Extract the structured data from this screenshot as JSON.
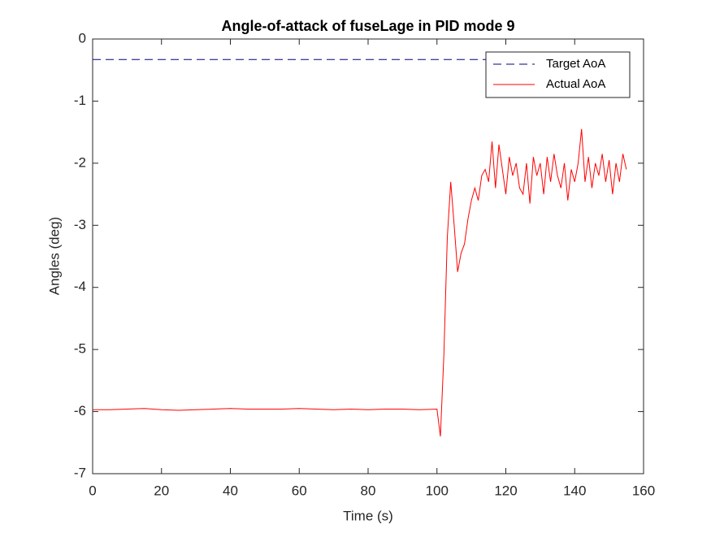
{
  "chart_data": {
    "type": "line",
    "title": "Angle-of-attack of fuseLage in PID mode 9",
    "x_label": "Time (s)",
    "y_label": "Angles (deg)",
    "x": [
      0,
      5,
      10,
      15,
      20,
      25,
      30,
      35,
      40,
      45,
      50,
      55,
      60,
      65,
      70,
      75,
      80,
      85,
      90,
      95,
      100,
      101,
      102,
      103,
      104,
      105,
      106,
      107,
      108,
      109,
      110,
      111,
      112,
      113,
      114,
      115,
      116,
      117,
      118,
      119,
      120,
      121,
      122,
      123,
      124,
      125,
      126,
      127,
      128,
      129,
      130,
      131,
      132,
      133,
      134,
      135,
      136,
      137,
      138,
      139,
      140,
      141,
      142,
      143,
      144,
      145,
      146,
      147,
      148,
      149,
      150,
      151,
      152,
      153,
      154,
      155
    ],
    "series": [
      {
        "name": "Target AoA",
        "color": "#00007f",
        "dash": true,
        "values": [
          -0.33,
          -0.33,
          -0.33,
          -0.33,
          -0.33,
          -0.33,
          -0.33,
          -0.33,
          -0.33,
          -0.33,
          -0.33,
          -0.33,
          -0.33,
          -0.33,
          -0.33,
          -0.33,
          -0.33,
          -0.33,
          -0.33,
          -0.33,
          -0.33,
          -0.33,
          -0.33,
          -0.33,
          -0.33,
          -0.33,
          -0.33,
          -0.33,
          -0.33,
          -0.33,
          -0.33,
          -0.33,
          -0.33,
          -0.33,
          -0.33,
          -0.33,
          -0.33,
          -0.33,
          -0.33,
          -0.33,
          -0.33,
          -0.33,
          -0.33,
          -0.33,
          -0.33,
          -0.33,
          -0.33,
          -0.33,
          -0.33,
          -0.33,
          -0.33,
          -0.33,
          -0.33,
          -0.33,
          -0.33,
          -0.33,
          -0.33,
          -0.33,
          -0.33,
          -0.33,
          -0.33,
          -0.33,
          -0.33,
          -0.33,
          -0.33,
          -0.33,
          -0.33,
          -0.33,
          -0.33,
          -0.33,
          -0.33,
          -0.33,
          -0.33,
          -0.33,
          -0.33,
          -0.33
        ]
      },
      {
        "name": "Actual AoA",
        "color": "#ff0000",
        "dash": false,
        "values": [
          -5.97,
          -5.97,
          -5.96,
          -5.95,
          -5.97,
          -5.98,
          -5.97,
          -5.96,
          -5.95,
          -5.96,
          -5.96,
          -5.96,
          -5.95,
          -5.96,
          -5.97,
          -5.96,
          -5.97,
          -5.96,
          -5.96,
          -5.97,
          -5.96,
          -6.4,
          -5.1,
          -3.2,
          -2.3,
          -3.0,
          -3.75,
          -3.45,
          -3.3,
          -2.9,
          -2.6,
          -2.4,
          -2.6,
          -2.2,
          -2.1,
          -2.3,
          -1.65,
          -2.4,
          -1.7,
          -2.1,
          -2.5,
          -1.9,
          -2.2,
          -2.0,
          -2.4,
          -2.5,
          -2.0,
          -2.65,
          -1.9,
          -2.2,
          -2.0,
          -2.5,
          -1.9,
          -2.3,
          -1.85,
          -2.2,
          -2.4,
          -2.0,
          -2.6,
          -2.1,
          -2.3,
          -2.0,
          -1.45,
          -2.3,
          -1.9,
          -2.4,
          -2.0,
          -2.2,
          -1.85,
          -2.3,
          -1.95,
          -2.5,
          -2.0,
          -2.3,
          -1.85,
          -2.1
        ]
      }
    ],
    "xlim": [
      0,
      160
    ],
    "xticks": [
      0,
      20,
      40,
      60,
      80,
      100,
      120,
      140,
      160
    ],
    "ylim": [
      -7,
      0
    ],
    "yticks": [
      -7,
      -6,
      -5,
      -4,
      -3,
      -2,
      -1,
      0
    ],
    "legend": "northeast",
    "grid": false
  }
}
